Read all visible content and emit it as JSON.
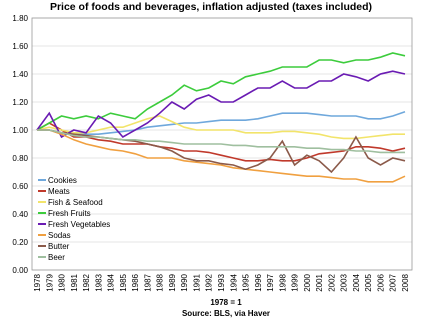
{
  "chart_data": {
    "type": "line",
    "title": "Price of foods and beverages, inflation adjusted (taxes included)",
    "footnote": "1978 = 1",
    "source": "Source: BLS, via Haver",
    "categories": [
      "1978",
      "1979",
      "1980",
      "1981",
      "1982",
      "1983",
      "1984",
      "1985",
      "1986",
      "1987",
      "1988",
      "1989",
      "1990",
      "1991",
      "1992",
      "1993",
      "1994",
      "1995",
      "1996",
      "1997",
      "1998",
      "1999",
      "2000",
      "2001",
      "2002",
      "2003",
      "2004",
      "2005",
      "2006",
      "2007",
      "2008"
    ],
    "ylim": [
      0,
      1.8
    ],
    "yticks": [
      {
        "value": 0,
        "label": "0.00"
      },
      {
        "value": 0.2,
        "label": "0.20"
      },
      {
        "value": 0.4,
        "label": "0.40"
      },
      {
        "value": 0.6,
        "label": "0.60"
      },
      {
        "value": 0.8,
        "label": "0.80"
      },
      {
        "value": 1,
        "label": "1.00"
      },
      {
        "value": 1.2,
        "label": "1.20"
      },
      {
        "value": 1.4,
        "label": "1.40"
      },
      {
        "value": 1.6,
        "label": "1.60"
      },
      {
        "value": 1.8,
        "label": "1.80"
      }
    ],
    "grid": true,
    "series": [
      {
        "name": "Cookies",
        "color": "#6fa8dc",
        "values": [
          1.0,
          1.0,
          0.98,
          0.97,
          0.97,
          0.97,
          0.98,
          0.99,
          1.0,
          1.02,
          1.03,
          1.04,
          1.05,
          1.05,
          1.06,
          1.07,
          1.07,
          1.07,
          1.08,
          1.1,
          1.12,
          1.12,
          1.12,
          1.11,
          1.1,
          1.1,
          1.1,
          1.08,
          1.08,
          1.1,
          1.13
        ]
      },
      {
        "name": "Meats",
        "color": "#c0392b",
        "values": [
          1.0,
          1.05,
          1.0,
          0.95,
          0.95,
          0.93,
          0.92,
          0.9,
          0.9,
          0.9,
          0.88,
          0.87,
          0.85,
          0.85,
          0.84,
          0.82,
          0.8,
          0.78,
          0.78,
          0.79,
          0.78,
          0.78,
          0.8,
          0.83,
          0.84,
          0.85,
          0.88,
          0.88,
          0.87,
          0.85,
          0.87
        ]
      },
      {
        "name": "Fish & Seafood",
        "color": "#f2e46a",
        "values": [
          1.0,
          1.02,
          1.0,
          0.98,
          0.98,
          1.0,
          1.02,
          1.02,
          1.05,
          1.08,
          1.1,
          1.06,
          1.02,
          1.0,
          1.0,
          1.0,
          1.0,
          0.98,
          0.98,
          0.98,
          0.99,
          0.99,
          0.98,
          0.97,
          0.95,
          0.94,
          0.94,
          0.95,
          0.96,
          0.97,
          0.97
        ]
      },
      {
        "name": "Fresh Fruits",
        "color": "#3ccc3c",
        "values": [
          1.0,
          1.05,
          1.1,
          1.08,
          1.1,
          1.08,
          1.12,
          1.1,
          1.08,
          1.15,
          1.2,
          1.25,
          1.32,
          1.28,
          1.3,
          1.35,
          1.33,
          1.38,
          1.4,
          1.42,
          1.45,
          1.45,
          1.45,
          1.5,
          1.5,
          1.48,
          1.5,
          1.5,
          1.52,
          1.55,
          1.53
        ]
      },
      {
        "name": "Fresh Vegetables",
        "color": "#6a1bb3",
        "values": [
          1.0,
          1.12,
          0.95,
          1.0,
          0.98,
          1.1,
          1.05,
          0.95,
          1.0,
          1.05,
          1.12,
          1.2,
          1.15,
          1.22,
          1.25,
          1.2,
          1.2,
          1.25,
          1.3,
          1.3,
          1.35,
          1.3,
          1.3,
          1.35,
          1.35,
          1.4,
          1.38,
          1.35,
          1.4,
          1.42,
          1.4
        ]
      },
      {
        "name": "Sodas",
        "color": "#f0a040",
        "values": [
          1.0,
          1.0,
          0.97,
          0.93,
          0.9,
          0.88,
          0.86,
          0.85,
          0.83,
          0.8,
          0.8,
          0.8,
          0.78,
          0.77,
          0.76,
          0.75,
          0.73,
          0.72,
          0.71,
          0.7,
          0.69,
          0.68,
          0.67,
          0.67,
          0.66,
          0.65,
          0.65,
          0.63,
          0.63,
          0.63,
          0.67
        ]
      },
      {
        "name": "Butter",
        "color": "#8b5a4a",
        "values": [
          1.0,
          1.0,
          0.98,
          0.97,
          0.96,
          0.95,
          0.94,
          0.93,
          0.92,
          0.9,
          0.88,
          0.85,
          0.8,
          0.78,
          0.78,
          0.76,
          0.75,
          0.72,
          0.75,
          0.8,
          0.92,
          0.75,
          0.82,
          0.78,
          0.7,
          0.8,
          0.95,
          0.8,
          0.75,
          0.8,
          0.78
        ]
      },
      {
        "name": "Beer",
        "color": "#9fbf9f",
        "values": [
          1.0,
          1.0,
          0.98,
          0.96,
          0.95,
          0.95,
          0.94,
          0.93,
          0.93,
          0.92,
          0.92,
          0.91,
          0.9,
          0.9,
          0.9,
          0.9,
          0.89,
          0.89,
          0.88,
          0.88,
          0.88,
          0.88,
          0.87,
          0.87,
          0.86,
          0.86,
          0.85,
          0.85,
          0.84,
          0.84,
          0.84
        ]
      }
    ]
  }
}
